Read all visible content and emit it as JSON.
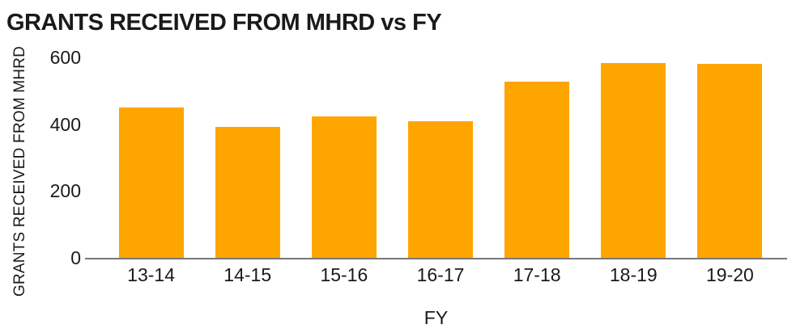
{
  "chart_data": {
    "type": "bar",
    "title": "GRANTS RECEIVED FROM MHRD vs FY",
    "xlabel": "FY",
    "ylabel": "GRANTS RECEIVED FROM MHRD",
    "categories": [
      "13-14",
      "14-15",
      "15-16",
      "16-17",
      "17-18",
      "18-19",
      "19-20"
    ],
    "values": [
      450,
      393,
      423,
      409,
      528,
      584,
      580
    ],
    "yticks": [
      0,
      200,
      400,
      600
    ],
    "ylim": [
      0,
      600
    ],
    "grid": false,
    "legend": false,
    "bar_color": "#FFA500",
    "axis_color": "#777777",
    "text_color": "#1A1A1A",
    "background_color": "#FFFFFF"
  }
}
